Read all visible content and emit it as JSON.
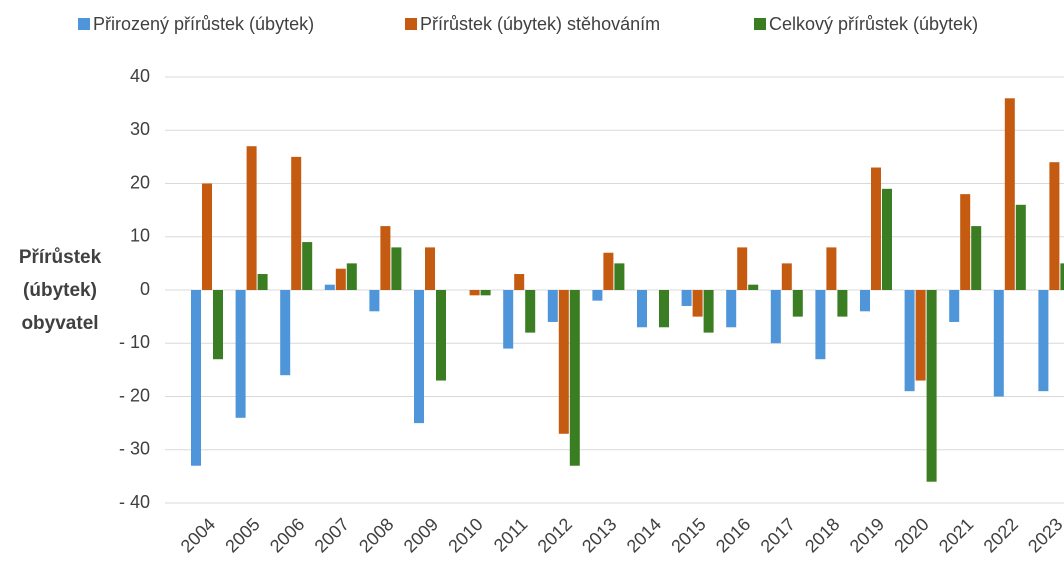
{
  "chart_data": {
    "type": "bar",
    "ylabel": [
      "Přírůstek",
      "(úbytek)",
      "obyvatel"
    ],
    "categories": [
      "2004",
      "2005",
      "2006",
      "2007",
      "2008",
      "2009",
      "2010",
      "2011",
      "2012",
      "2013",
      "2014",
      "2015",
      "2016",
      "2017",
      "2018",
      "2019",
      "2020",
      "2021",
      "2022",
      "2023"
    ],
    "series": [
      {
        "name": "Přirozený přírůstek (úbytek)",
        "color": "#4e95d9",
        "values": [
          -33,
          -24,
          -16,
          1,
          -4,
          -25,
          0,
          -11,
          -6,
          -2,
          -7,
          -3,
          -7,
          -10,
          -13,
          -4,
          -19,
          -6,
          -20,
          -19
        ]
      },
      {
        "name": "Přírůstek (úbytek) stěhováním",
        "color": "#c55a11",
        "values": [
          20,
          27,
          25,
          4,
          12,
          8,
          -1,
          3,
          -27,
          7,
          0,
          -5,
          8,
          5,
          8,
          23,
          -17,
          18,
          36,
          24
        ]
      },
      {
        "name": "Celkový přírůstek (úbytek)",
        "color": "#3a7d22",
        "values": [
          -13,
          3,
          9,
          5,
          8,
          -17,
          -1,
          -8,
          -33,
          5,
          -7,
          -8,
          1,
          -5,
          -5,
          19,
          -36,
          12,
          16,
          5
        ]
      }
    ],
    "ylim": [
      -40,
      40
    ],
    "yticks": [
      {
        "value": -40,
        "label": "- 40"
      },
      {
        "value": -30,
        "label": "- 30"
      },
      {
        "value": -20,
        "label": "- 20"
      },
      {
        "value": -10,
        "label": "- 10"
      },
      0,
      10,
      20,
      30,
      40
    ],
    "grid": true,
    "legend": "top"
  }
}
